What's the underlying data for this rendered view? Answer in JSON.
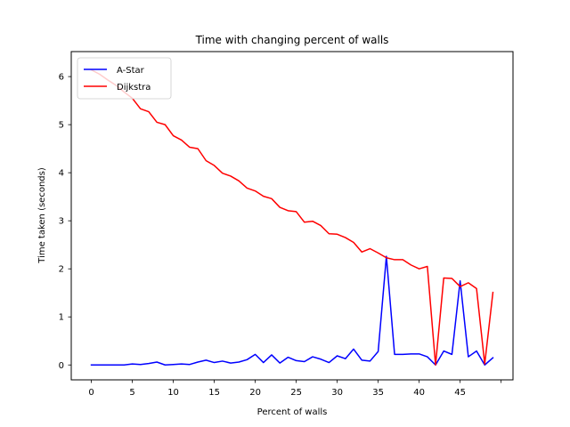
{
  "chart_data": {
    "type": "line",
    "title": "Time with changing percent of walls",
    "xlabel": "Percent of walls",
    "ylabel": "Time taken (seconds)",
    "xlim": [
      -2.45,
      51.45
    ],
    "ylim": [
      -0.31,
      6.52
    ],
    "xticks": [
      0,
      5,
      10,
      15,
      20,
      25,
      30,
      35,
      40,
      45,
      50
    ],
    "xtick_labels": [
      "0",
      "5",
      "10",
      "15",
      "20",
      "25",
      "30",
      "35",
      "40",
      "45",
      ""
    ],
    "yticks": [
      0,
      1,
      2,
      3,
      4,
      5,
      6
    ],
    "ytick_labels": [
      "0",
      "1",
      "2",
      "3",
      "4",
      "5",
      "6"
    ],
    "grid": false,
    "legend_position": "top-left",
    "x": [
      0,
      1,
      2,
      3,
      4,
      5,
      6,
      7,
      8,
      9,
      10,
      11,
      12,
      13,
      14,
      15,
      16,
      17,
      18,
      19,
      20,
      21,
      22,
      23,
      24,
      25,
      26,
      27,
      28,
      29,
      30,
      31,
      32,
      33,
      34,
      35,
      36,
      37,
      38,
      39,
      40,
      41,
      42,
      43,
      44,
      45,
      46,
      47,
      48,
      49
    ],
    "series": [
      {
        "name": "A-Star",
        "color": "#0000ff",
        "values": [
          0,
          0,
          0,
          0,
          0,
          0.02,
          0.01,
          0.03,
          0.06,
          0,
          0.01,
          0.02,
          0.01,
          0.06,
          0.1,
          0.05,
          0.08,
          0.04,
          0.06,
          0.11,
          0.22,
          0.05,
          0.21,
          0.04,
          0.16,
          0.09,
          0.07,
          0.17,
          0.12,
          0.05,
          0.19,
          0.13,
          0.33,
          0.1,
          0.08,
          0.28,
          2.26,
          0.22,
          0.22,
          0.23,
          0.23,
          0.17,
          0,
          0.29,
          0.22,
          1.75,
          0.17,
          0.29,
          0,
          0.15
        ]
      },
      {
        "name": "Dijkstra",
        "color": "#ff0000",
        "values": [
          6.14,
          6.05,
          5.93,
          5.82,
          5.68,
          5.55,
          5.33,
          5.27,
          5.05,
          5.0,
          4.77,
          4.68,
          4.53,
          4.5,
          4.25,
          4.15,
          3.99,
          3.93,
          3.83,
          3.68,
          3.62,
          3.51,
          3.46,
          3.28,
          3.21,
          3.19,
          2.97,
          2.99,
          2.9,
          2.73,
          2.72,
          2.65,
          2.55,
          2.35,
          2.42,
          2.33,
          2.23,
          2.19,
          2.19,
          2.08,
          2.0,
          2.05,
          0.0,
          1.81,
          1.8,
          1.63,
          1.71,
          1.59,
          0.02,
          1.51
        ]
      }
    ]
  }
}
